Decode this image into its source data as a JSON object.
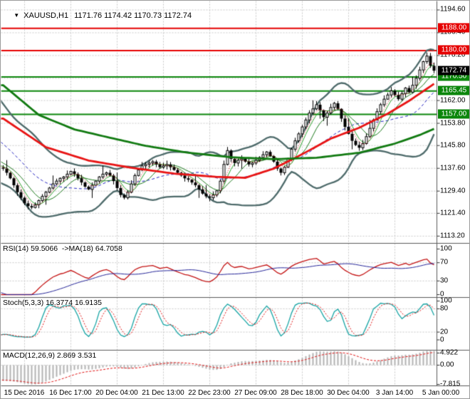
{
  "glyphs": {
    "dropdown": "▼"
  },
  "chart_data": {
    "type": "candlestick",
    "symbol": "XAUUSD",
    "timeframe": "H1",
    "title": "XAUUSD,H1",
    "ohlc_text": "1171.76 1174.42 1170.73 1172.74",
    "main": {
      "ylim": [
        1110.6,
        1197.8
      ],
      "yticks": [
        "1194.60",
        "1186.40",
        "1178.20",
        "1162.00",
        "1153.80",
        "1145.80",
        "1137.60",
        "1129.40",
        "1121.40",
        "1113.20"
      ],
      "grid_extra_prices": [
        1170.0
      ],
      "levels": [
        {
          "label": "1188.00",
          "price": 1188.0,
          "color": "#e60000"
        },
        {
          "label": "1180.00",
          "price": 1180.0,
          "color": "#e60000"
        },
        {
          "label": "1170.50",
          "price": 1170.5,
          "color": "#0b860b"
        },
        {
          "label": "1165.45",
          "price": 1165.45,
          "color": "#0b860b"
        },
        {
          "label": "1157.00",
          "price": 1157.0,
          "color": "#0b860b"
        }
      ],
      "current_price": {
        "label": "1172.74",
        "price": 1172.74,
        "box_color": "#000000"
      },
      "close_path": [
        1137.5,
        1136.0,
        1134.0,
        1131.5,
        1129.0,
        1127.0,
        1125.0,
        1124.0,
        1123.5,
        1124.5,
        1126.0,
        1127.5,
        1129.0,
        1130.5,
        1132.0,
        1133.0,
        1134.0,
        1134.5,
        1135.5,
        1136.5,
        1135.5,
        1134.0,
        1132.5,
        1131.0,
        1130.0,
        1131.5,
        1133.0,
        1134.5,
        1135.5,
        1136.0,
        1135.0,
        1133.0,
        1130.5,
        1128.0,
        1127.0,
        1129.0,
        1132.0,
        1135.0,
        1137.0,
        1138.5,
        1139.0,
        1139.5,
        1140.0,
        1139.0,
        1138.0,
        1138.5,
        1139.0,
        1138.0,
        1137.0,
        1136.0,
        1135.0,
        1134.0,
        1133.5,
        1132.5,
        1131.5,
        1130.0,
        1128.5,
        1127.5,
        1127.0,
        1128.0,
        1129.5,
        1133.0,
        1139.0,
        1144.0,
        1141.0,
        1139.5,
        1140.5,
        1141.0,
        1140.0,
        1139.0,
        1139.5,
        1140.5,
        1141.5,
        1142.5,
        1143.5,
        1142.0,
        1140.0,
        1137.5,
        1136.0,
        1138.0,
        1141.0,
        1144.5,
        1147.5,
        1150.0,
        1152.5,
        1155.0,
        1157.5,
        1159.0,
        1160.5,
        1158.5,
        1156.0,
        1157.5,
        1159.5,
        1161.0,
        1159.0,
        1155.5,
        1152.5,
        1150.0,
        1147.5,
        1146.0,
        1145.0,
        1146.5,
        1149.0,
        1152.0,
        1155.0,
        1158.0,
        1160.5,
        1162.5,
        1164.0,
        1165.5,
        1164.0,
        1162.5,
        1164.5,
        1166.5,
        1165.0,
        1167.5,
        1170.0,
        1173.0,
        1176.0,
        1178.0,
        1174.5,
        1172.74
      ],
      "warmup_path": [
        1168.0,
        1167.2,
        1166.5,
        1166.0,
        1165.0,
        1164.0,
        1163.5,
        1163.0,
        1162.0,
        1161.0,
        1160.0,
        1159.0,
        1158.0,
        1156.5,
        1155.0,
        1153.5,
        1152.0,
        1150.5,
        1149.0,
        1147.5,
        1146.0,
        1144.5,
        1143.0,
        1141.5,
        1140.0,
        1139.5,
        1139.0,
        1138.6,
        1138.2,
        1137.9
      ],
      "ma_red_points": [
        [
          0,
          1155.5
        ],
        [
          12,
          1145.2
        ],
        [
          24,
          1140.4
        ],
        [
          36,
          1137.8
        ],
        [
          48,
          1135.7
        ],
        [
          60,
          1134.5
        ],
        [
          68,
          1134.2
        ],
        [
          76,
          1137.5
        ],
        [
          84,
          1142.7
        ],
        [
          92,
          1148.3
        ],
        [
          100,
          1152.2
        ],
        [
          108,
          1157.3
        ],
        [
          114,
          1161.9
        ],
        [
          121,
          1168.0
        ]
      ],
      "ma_green_points": [
        [
          0,
          1167.5
        ],
        [
          10,
          1156.8
        ],
        [
          20,
          1151.6
        ],
        [
          30,
          1148.6
        ],
        [
          40,
          1145.7
        ],
        [
          52,
          1143.2
        ],
        [
          64,
          1141.6
        ],
        [
          76,
          1140.9
        ],
        [
          88,
          1141.4
        ],
        [
          100,
          1143.2
        ],
        [
          110,
          1146.5
        ],
        [
          117,
          1149.6
        ],
        [
          121,
          1151.8
        ]
      ]
    },
    "x_ticks": [
      "15 Dec 2016",
      "16 Dec 17:00",
      "20 Dec 04:00",
      "21 Dec 13:00",
      "22 Dec 23:00",
      "27 Dec 09:00",
      "28 Dec 18:00",
      "30 Dec 04:00",
      "3 Jan 14:00",
      "5 Jan 00:00"
    ],
    "panels": [
      {
        "name": "rsi",
        "label": "RSI(14) 59.5066  ->MA(18) 64.7058",
        "yticks": [
          "100",
          "70",
          "30",
          "0"
        ],
        "grid": [
          70,
          30
        ]
      },
      {
        "name": "stoch",
        "label": "Stoch(5,3,3) 16.3774 16.9135",
        "yticks": [
          "100",
          "80",
          "20",
          "0"
        ],
        "grid": [
          80,
          20
        ]
      },
      {
        "name": "macd",
        "label": "MACD(12,26,9) 2.869 3.531",
        "yticks": [
          "4.922",
          "0.00",
          "-7.815"
        ],
        "grid": [
          0
        ]
      }
    ],
    "colors": {
      "grid": "#c9c9c9",
      "separator": "#5a5a5a",
      "bar": "#000000",
      "bb_band": "#4d6a6a",
      "bb_mid": "#2020c0",
      "ma_thin1": "#2da32d",
      "ma_thin2": "#1d7a1d",
      "ma_dot_red": "#dd2222",
      "ma_red": "#e81414",
      "ma_green": "#117a11",
      "rsi_line": "#c41414",
      "rsi_ma": "#262699",
      "stoch_k": "#18a5a5",
      "stoch_d": "#e01414",
      "macd_hist": "#b3b3b3",
      "macd_signal": "#e01414"
    }
  }
}
